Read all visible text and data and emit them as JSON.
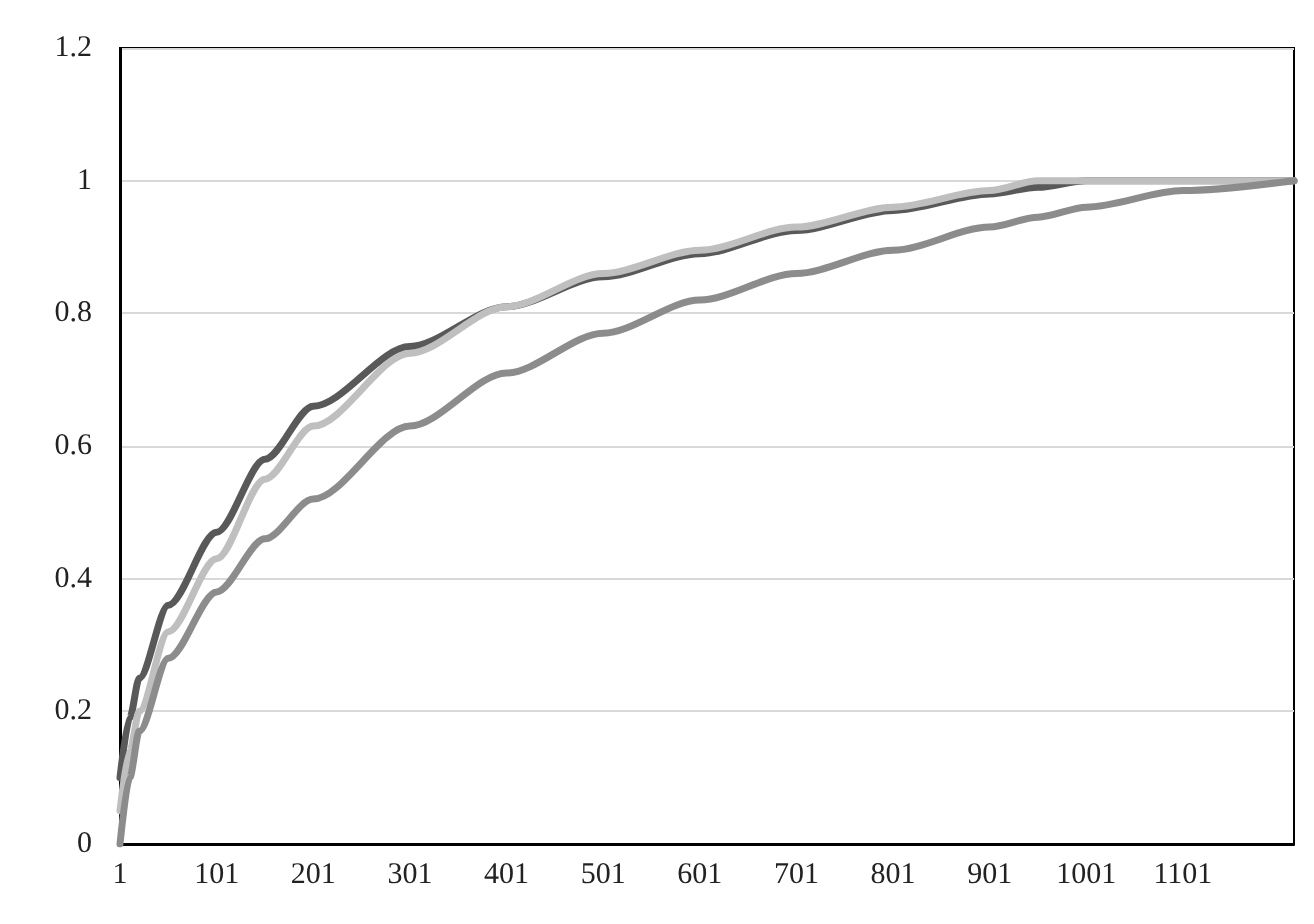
{
  "chart_data": {
    "type": "line",
    "xlim": [
      1,
      1216
    ],
    "xticks": [
      1,
      101,
      201,
      301,
      401,
      501,
      601,
      701,
      801,
      901,
      1001,
      1101
    ],
    "ylim": [
      0,
      1.2
    ],
    "yticks": [
      0,
      0.2,
      0.4,
      0.6,
      0.8,
      1,
      1.2
    ],
    "grid": "y",
    "marker": "none",
    "line_style": "solid",
    "x": [
      1,
      11,
      21,
      51,
      101,
      151,
      201,
      301,
      401,
      501,
      601,
      701,
      801,
      901,
      951,
      1001,
      1101,
      1216
    ],
    "series": [
      {
        "color": "#595959",
        "values": [
          0.1,
          0.19,
          0.25,
          0.36,
          0.47,
          0.58,
          0.66,
          0.75,
          0.81,
          0.855,
          0.89,
          0.925,
          0.955,
          0.98,
          0.99,
          1,
          1,
          1
        ]
      },
      {
        "color": "#bfbfbf",
        "values": [
          0.05,
          0.14,
          0.2,
          0.32,
          0.43,
          0.55,
          0.63,
          0.74,
          0.81,
          0.86,
          0.895,
          0.93,
          0.96,
          0.985,
          1,
          1,
          1,
          1
        ]
      },
      {
        "color": "#8c8c8c",
        "values": [
          0,
          0.1,
          0.17,
          0.28,
          0.38,
          0.46,
          0.52,
          0.63,
          0.71,
          0.77,
          0.82,
          0.86,
          0.895,
          0.93,
          0.945,
          0.96,
          0.985,
          1
        ]
      }
    ]
  }
}
